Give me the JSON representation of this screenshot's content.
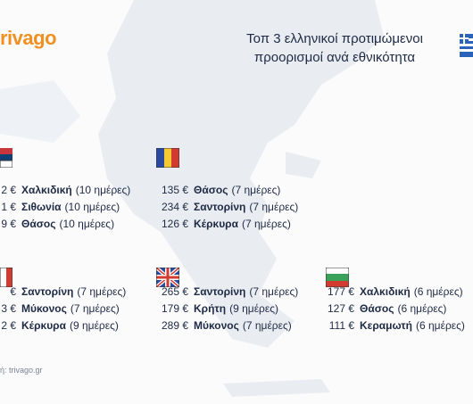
{
  "logo": "rivago",
  "title": {
    "line1": "Τοπ 3 ελληνικοί προτιμώμενοι",
    "line2": "προορισμοί ανά εθνικότητα"
  },
  "groups": [
    {
      "rows": [
        {
          "price": "2 €",
          "place": "Χαλκιδική",
          "days": "(10 ημέρες)"
        },
        {
          "price": "1 €",
          "place": "Σιθωνία",
          "days": "(10 ημέρες)"
        },
        {
          "price": "9 €",
          "place": "Θάσος",
          "days": "(10 ημέρες)"
        }
      ]
    },
    {
      "rows": [
        {
          "price": "135 €",
          "place": "Θάσος",
          "days": "(7 ημέρες)"
        },
        {
          "price": "234 €",
          "place": "Σαντορίνη",
          "days": "(7 ημέρες)"
        },
        {
          "price": "126 €",
          "place": "Κέρκυρα",
          "days": "(7 ημέρες)"
        }
      ]
    },
    {
      "rows": [
        {
          "price": "€",
          "place": "Σαντορίνη",
          "days": "(7 ημέρες)"
        },
        {
          "price": "3 €",
          "place": "Μύκονος",
          "days": "(7 ημέρες)"
        },
        {
          "price": "2 €",
          "place": "Κέρκυρα",
          "days": "(9 ημέρες)"
        }
      ]
    },
    {
      "rows": [
        {
          "price": "265 €",
          "place": "Σαντορίνη",
          "days": "(7 ημέρες)"
        },
        {
          "price": "179 €",
          "place": "Κρήτη",
          "days": "(9 ημέρες)"
        },
        {
          "price": "289 €",
          "place": "Μύκονος",
          "days": "(7 ημέρες)"
        }
      ]
    },
    {
      "rows": [
        {
          "price": "177 €",
          "place": "Χαλκιδική",
          "days": "(6 ημέρες)"
        },
        {
          "price": "127 €",
          "place": "Θάσος",
          "days": "(6 ημέρες)"
        },
        {
          "price": "111 €",
          "place": "Κεραμωτή",
          "days": "(6 ημέρες)"
        }
      ]
    }
  ],
  "source": "ή: trivago.gr"
}
